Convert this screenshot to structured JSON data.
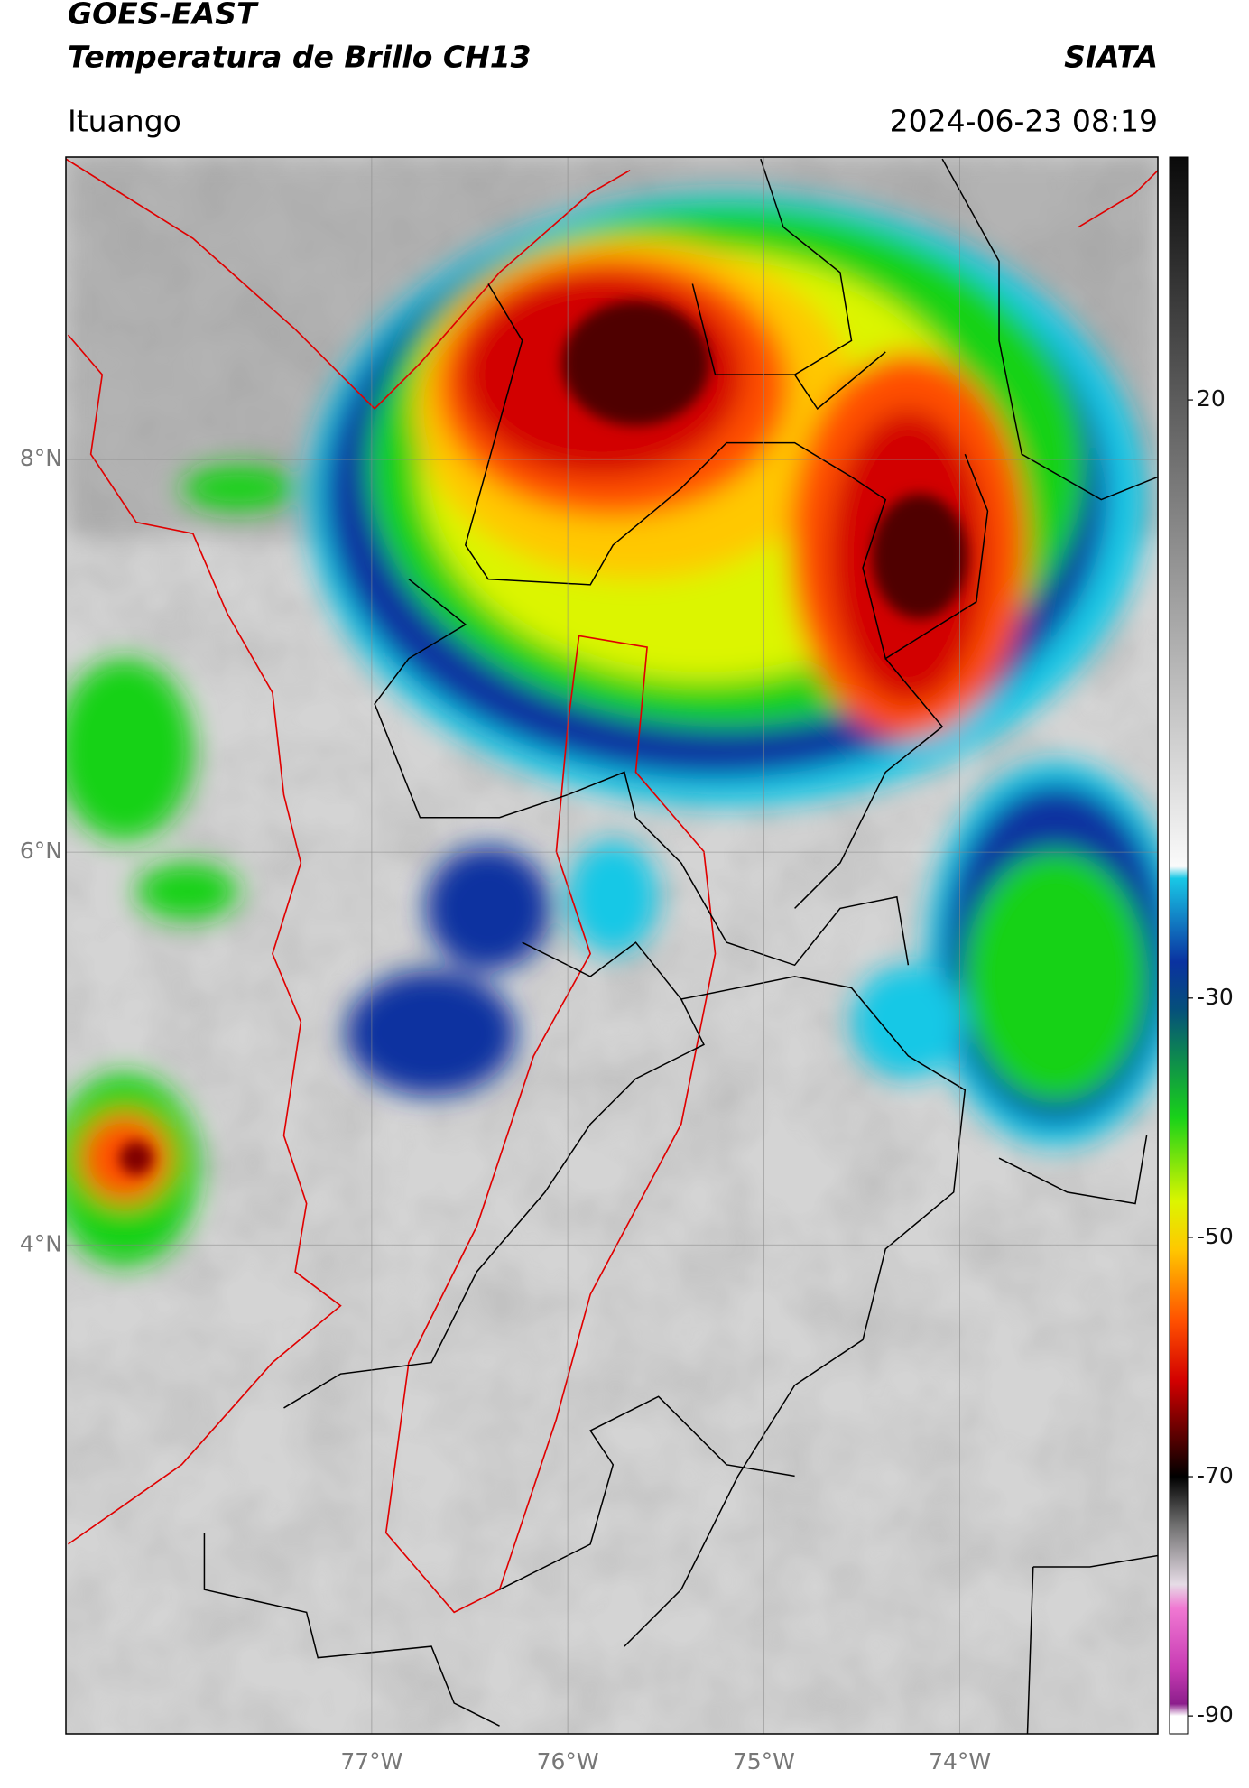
{
  "chart_data": {
    "type": "map",
    "title": "GOES-EAST",
    "subtitle": "Temperatura de Brillo CH13",
    "source": "SIATA",
    "location": "Ituango",
    "datetime": "2024-06-23 08:19",
    "xlim": [
      -78.56,
      -72.99
    ],
    "ylim": [
      1.51,
      9.54
    ],
    "xticks": [
      {
        "value": -77,
        "label": "77°W"
      },
      {
        "value": -76,
        "label": "76°W"
      },
      {
        "value": -75,
        "label": "75°W"
      },
      {
        "value": -74,
        "label": "74°W"
      }
    ],
    "yticks": [
      {
        "value": 8,
        "label": "8°N"
      },
      {
        "value": 6,
        "label": "6°N"
      },
      {
        "value": 4,
        "label": "4°N"
      }
    ],
    "grid": true,
    "colorbar": {
      "clim": [
        -91.5,
        40.3
      ],
      "ticks": [
        20,
        -30,
        -50,
        -70,
        -90
      ],
      "colormap": [
        {
          "value": 40.3,
          "color": "#0a0a0a"
        },
        {
          "value": -19,
          "color": "#fafafa"
        },
        {
          "value": -20,
          "color": "#19c8e6"
        },
        {
          "value": -27,
          "color": "#0a32a0"
        },
        {
          "value": -31,
          "color": "#05507a"
        },
        {
          "value": -40,
          "color": "#19d219"
        },
        {
          "value": -47,
          "color": "#dcf500"
        },
        {
          "value": -51,
          "color": "#ffc800"
        },
        {
          "value": -57,
          "color": "#ff5000"
        },
        {
          "value": -62,
          "color": "#d20000"
        },
        {
          "value": -67,
          "color": "#500000"
        },
        {
          "value": -70,
          "color": "#000000"
        },
        {
          "value": -74,
          "color": "#6e6e6e"
        },
        {
          "value": -79,
          "color": "#e6dce6"
        },
        {
          "value": -81,
          "color": "#f078d2"
        },
        {
          "value": -86,
          "color": "#c83cb4"
        },
        {
          "value": -89,
          "color": "#8c1e8c"
        },
        {
          "value": -90,
          "color": "#ffffff"
        }
      ]
    }
  }
}
